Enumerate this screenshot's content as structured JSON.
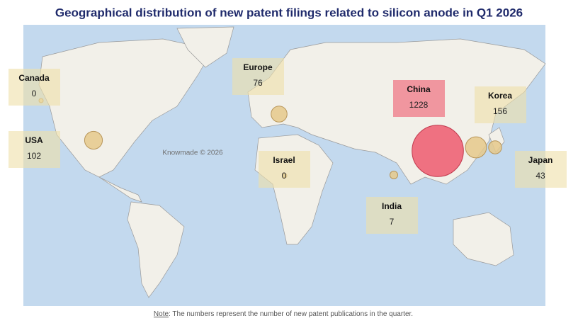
{
  "title": "Geographical distribution of new patent filings related to silicon anode in Q1 2026",
  "regions": [
    {
      "name": "Canada",
      "value": 0,
      "color": "#e6c98b"
    },
    {
      "name": "USA",
      "value": 102,
      "color": "#e6c98b"
    },
    {
      "name": "Europe",
      "value": 76,
      "color": "#e6c98b"
    },
    {
      "name": "Israel",
      "value": 0,
      "color": "#e6c98b"
    },
    {
      "name": "China",
      "value": 1228,
      "color": "#ee5a6e"
    },
    {
      "name": "Korea",
      "value": 156,
      "color": "#e6c98b"
    },
    {
      "name": "Japan",
      "value": 43,
      "color": "#e6c98b"
    },
    {
      "name": "India",
      "value": 7,
      "color": "#e6c98b"
    }
  ],
  "watermark": "Knowmade © 2026",
  "note": {
    "label": "Note",
    "text": ": The numbers represent the number of new patent publications in the quarter."
  }
}
